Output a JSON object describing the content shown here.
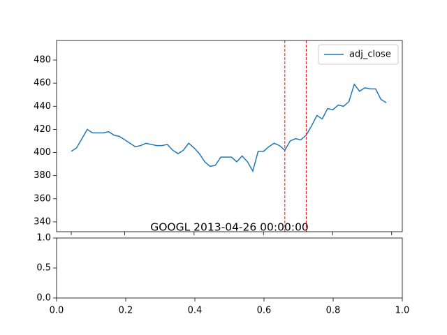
{
  "chart_data": [
    {
      "type": "line",
      "x": [
        0,
        1,
        2,
        3,
        4,
        5,
        6,
        7,
        8,
        9,
        10,
        11,
        12,
        13,
        14,
        15,
        16,
        17,
        18,
        19,
        20,
        21,
        22,
        23,
        24,
        25,
        26,
        27,
        28,
        29,
        30,
        31,
        32,
        33,
        34,
        35,
        36,
        37,
        38,
        39,
        40,
        41,
        42,
        43,
        44,
        45,
        46,
        47,
        48,
        49,
        50,
        51,
        52,
        53,
        54,
        55,
        56,
        57,
        58,
        59
      ],
      "series": [
        {
          "name": "adj_close",
          "color": "#1f77b4",
          "values": [
            401,
            404,
            412,
            420,
            417,
            417,
            417,
            418,
            415,
            414,
            411,
            408,
            405,
            406,
            408,
            407,
            406,
            406,
            407,
            402,
            399,
            402,
            408,
            404,
            399,
            392,
            388,
            389,
            396,
            396,
            396,
            392,
            397,
            392,
            384,
            401,
            401,
            405,
            408,
            406,
            402,
            410,
            412,
            411,
            415,
            423,
            432,
            429,
            438,
            437,
            441,
            440,
            444,
            459,
            453,
            456,
            455,
            455,
            446,
            443
          ]
        }
      ],
      "xlim": [
        -2.75,
        62
      ],
      "xticks": [
        0,
        10,
        23,
        36,
        49,
        60
      ],
      "xtick_labels": false,
      "ylim": [
        331.5,
        496.9
      ],
      "yticks": [
        340,
        360,
        380,
        400,
        420,
        440,
        460,
        480
      ],
      "vlines": [
        40,
        44
      ],
      "vline_color": "#ff0000",
      "legend": "upper right"
    },
    {
      "type": "empty",
      "title": "GOOGL 2013-04-26 00:00:00",
      "xlim": [
        0,
        1
      ],
      "xticks": [
        {
          "value": 0,
          "label": "0.0"
        },
        0.2,
        0.4,
        0.6,
        0.8,
        {
          "value": 1,
          "label": "1.0"
        }
      ],
      "ylim": [
        0,
        1
      ],
      "yticks": [
        {
          "value": 0,
          "label": "0.0"
        },
        0.5,
        {
          "value": 1,
          "label": "1.0"
        }
      ]
    }
  ]
}
